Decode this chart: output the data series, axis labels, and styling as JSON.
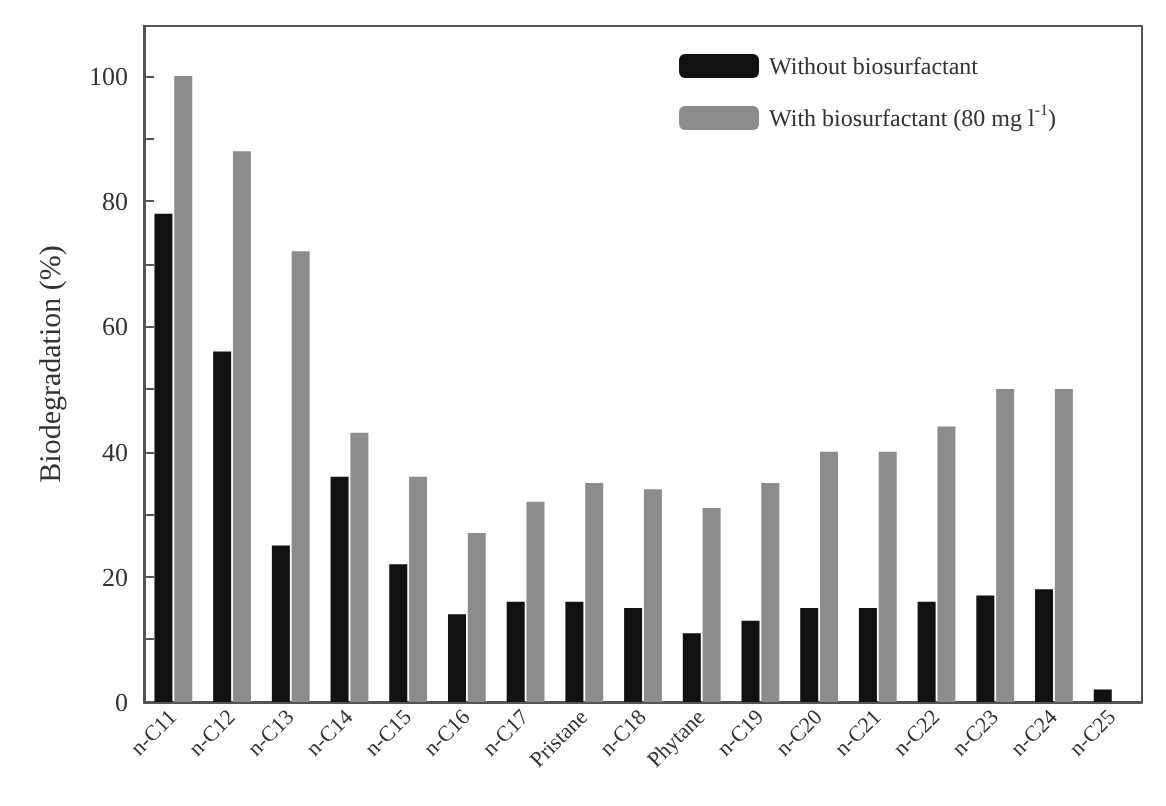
{
  "chart_data": {
    "type": "bar",
    "ylabel": "Biodegradation (%)",
    "categories": [
      "n-C11",
      "n-C12",
      "n-C13",
      "n-C14",
      "n-C15",
      "n-C16",
      "n-C17",
      "Pristane",
      "n-C18",
      "Phytane",
      "n-C19",
      "n-C20",
      "n-C21",
      "n-C22",
      "n-C23",
      "n-C24",
      "n-C25"
    ],
    "series": [
      {
        "name": "Without biosurfactant",
        "color": "#111111",
        "values": [
          78,
          56,
          25,
          36,
          22,
          14,
          16,
          16,
          15,
          11,
          13,
          15,
          15,
          16,
          17,
          18,
          2
        ]
      },
      {
        "name": "With biosurfactant (80 mg l$^{-1}$)",
        "color": "#8c8c8c",
        "values": [
          100,
          88,
          72,
          43,
          36,
          27,
          32,
          35,
          34,
          31,
          35,
          40,
          40,
          44,
          50,
          50,
          null
        ]
      }
    ],
    "ylim": [
      0,
      108
    ],
    "yticks": [
      0,
      {
        "value": 10,
        "label": null
      },
      20,
      {
        "value": 30,
        "label": null
      },
      40,
      {
        "value": 50,
        "label": null
      },
      60,
      {
        "value": 70,
        "label": null
      },
      80,
      {
        "value": 90,
        "label": null
      },
      100
    ],
    "grid": false,
    "legend": "top right"
  }
}
